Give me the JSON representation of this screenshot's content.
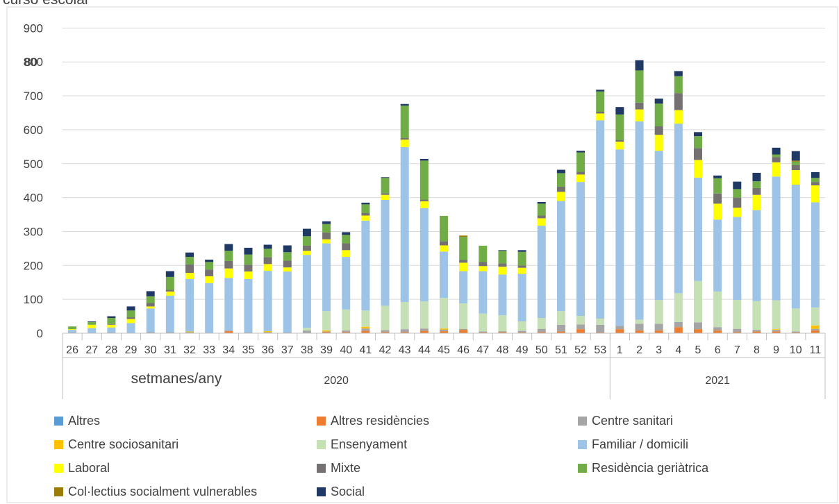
{
  "top_text_fragment": "curso escolar",
  "chart_data": {
    "type": "bar",
    "stacked": true,
    "x_axis": {
      "weeks": [
        "26",
        "27",
        "28",
        "29",
        "30",
        "31",
        "32",
        "33",
        "34",
        "35",
        "36",
        "37",
        "38",
        "39",
        "40",
        "41",
        "42",
        "43",
        "44",
        "45",
        "46",
        "47",
        "48",
        "49",
        "50",
        "51",
        "52",
        "53",
        "1",
        "2",
        "3",
        "4",
        "5",
        "6",
        "7",
        "8",
        "9",
        "10",
        "11"
      ],
      "years": [
        {
          "label": "2020",
          "first_week_index": 0,
          "last_week_index": 27
        },
        {
          "label": "2021",
          "first_week_index": 28,
          "last_week_index": 38
        }
      ],
      "label": "setmanes/any"
    },
    "y_axis": {
      "range": [
        0,
        900
      ],
      "ticks": [
        "0",
        "100",
        "200",
        "300",
        "400",
        "500",
        "600",
        "700",
        "800",
        "900"
      ],
      "overlapping_tick_label": "80",
      "gridlines": true
    },
    "legend_position": "bottom",
    "series": [
      {
        "name": "Altres",
        "color": "#5B9BD5",
        "values": [
          0,
          0,
          0,
          0,
          0,
          0,
          0,
          0,
          0,
          0,
          0,
          0,
          0,
          0,
          0,
          0,
          0,
          0,
          0,
          0,
          0,
          0,
          0,
          0,
          0,
          0,
          0,
          0,
          0,
          0,
          0,
          0,
          0,
          0,
          0,
          0,
          0,
          0,
          0
        ]
      },
      {
        "name": "Altres residències",
        "color": "#ED7D31",
        "values": [
          0,
          0,
          0,
          0,
          0,
          0,
          0,
          0,
          6,
          0,
          0,
          0,
          0,
          3,
          3,
          7,
          3,
          3,
          7,
          6,
          10,
          2,
          3,
          2,
          3,
          5,
          12,
          2,
          12,
          8,
          8,
          18,
          12,
          8,
          3,
          5,
          5,
          2,
          8
        ]
      },
      {
        "name": "Centre sanitari",
        "color": "#A5A5A5",
        "values": [
          2,
          0,
          2,
          0,
          3,
          3,
          3,
          0,
          2,
          2,
          3,
          2,
          8,
          2,
          5,
          7,
          6,
          9,
          7,
          5,
          3,
          3,
          3,
          5,
          10,
          20,
          14,
          23,
          10,
          20,
          20,
          15,
          20,
          10,
          10,
          5,
          5,
          3,
          5
        ]
      },
      {
        "name": "Centre sociosanitari",
        "color": "#FFC000",
        "values": [
          0,
          0,
          0,
          0,
          0,
          0,
          2,
          0,
          0,
          0,
          3,
          0,
          0,
          3,
          0,
          5,
          0,
          0,
          0,
          3,
          0,
          0,
          0,
          0,
          0,
          0,
          0,
          0,
          0,
          0,
          0,
          0,
          0,
          0,
          0,
          0,
          2,
          0,
          10
        ]
      },
      {
        "name": "Ensenyament",
        "color": "#C5E0B4",
        "values": [
          0,
          0,
          0,
          0,
          0,
          0,
          0,
          0,
          0,
          0,
          0,
          0,
          8,
          57,
          62,
          48,
          72,
          80,
          80,
          90,
          75,
          53,
          47,
          28,
          32,
          40,
          25,
          18,
          0,
          12,
          70,
          85,
          122,
          105,
          85,
          85,
          85,
          68,
          53
        ]
      },
      {
        "name": "Familiar / domicili",
        "color": "#9DC3E6",
        "values": [
          8,
          15,
          15,
          30,
          70,
          108,
          155,
          148,
          155,
          158,
          178,
          180,
          215,
          200,
          155,
          265,
          312,
          457,
          275,
          137,
          95,
          125,
          120,
          140,
          272,
          325,
          395,
          585,
          520,
          585,
          440,
          500,
          305,
          212,
          245,
          268,
          365,
          365,
          310
        ]
      },
      {
        "name": "Laboral",
        "color": "#FFFF00",
        "values": [
          2,
          10,
          8,
          12,
          6,
          12,
          18,
          20,
          28,
          22,
          20,
          12,
          12,
          12,
          20,
          15,
          15,
          22,
          20,
          18,
          25,
          15,
          23,
          18,
          22,
          27,
          22,
          20,
          23,
          35,
          47,
          40,
          52,
          47,
          27,
          45,
          42,
          43,
          50
        ]
      },
      {
        "name": "Mixte",
        "color": "#767171",
        "values": [
          0,
          0,
          2,
          5,
          10,
          5,
          25,
          20,
          22,
          20,
          20,
          20,
          15,
          20,
          20,
          8,
          5,
          5,
          5,
          12,
          8,
          12,
          10,
          7,
          8,
          15,
          8,
          5,
          5,
          20,
          25,
          50,
          35,
          30,
          30,
          20,
          15,
          15,
          10
        ]
      },
      {
        "name": "Residència geriàtrica",
        "color": "#70AD47",
        "values": [
          8,
          8,
          18,
          20,
          20,
          38,
          22,
          22,
          30,
          30,
          25,
          25,
          28,
          25,
          25,
          25,
          45,
          95,
          115,
          75,
          68,
          48,
          37,
          40,
          35,
          40,
          57,
          60,
          75,
          95,
          67,
          50,
          35,
          45,
          25,
          20,
          8,
          10,
          12
        ]
      },
      {
        "name": "Col·lectius socialment vulnerables",
        "color": "#9C7C08",
        "values": [
          0,
          0,
          0,
          0,
          0,
          0,
          0,
          0,
          0,
          0,
          0,
          0,
          0,
          0,
          0,
          0,
          0,
          0,
          0,
          0,
          4,
          0,
          0,
          0,
          0,
          0,
          0,
          0,
          0,
          0,
          0,
          0,
          0,
          0,
          0,
          0,
          0,
          3,
          0
        ]
      },
      {
        "name": "Social",
        "color": "#203864",
        "values": [
          0,
          2,
          5,
          12,
          15,
          17,
          13,
          7,
          20,
          20,
          12,
          20,
          22,
          8,
          8,
          5,
          2,
          5,
          5,
          0,
          0,
          0,
          2,
          5,
          5,
          10,
          5,
          5,
          22,
          30,
          15,
          15,
          12,
          8,
          22,
          25,
          20,
          28,
          17
        ]
      }
    ]
  }
}
